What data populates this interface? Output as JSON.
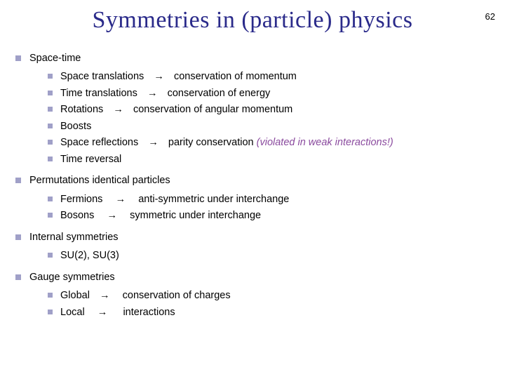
{
  "page_number": "62",
  "title": "Symmetries in (particle) physics",
  "title_color": "#2a2a8a",
  "bullet_color": "#a0a0c8",
  "note_color": "#8a4a9e",
  "arrow": "→",
  "body_fontsize": 14.5,
  "title_fontsize": 34,
  "sections": [
    {
      "heading": "Space-time",
      "items": [
        {
          "pre": "Space translations",
          "post": "conservation of momentum",
          "has_arrow": true
        },
        {
          "pre": "Time translations",
          "post": "conservation of energy",
          "has_arrow": true
        },
        {
          "pre": "Rotations",
          "post": "conservation of angular momentum",
          "has_arrow": true
        },
        {
          "pre": "Boosts",
          "post": "",
          "has_arrow": false
        },
        {
          "pre": "Space reflections",
          "post": "parity conservation",
          "has_arrow": true,
          "note": "(violated in weak interactions!)"
        },
        {
          "pre": "Time reversal",
          "post": "",
          "has_arrow": false
        }
      ]
    },
    {
      "heading": "Permutations identical particles",
      "items": [
        {
          "pre": "Fermions",
          "post": "anti-symmetric under interchange",
          "has_arrow": true
        },
        {
          "pre": "Bosons",
          "post": "symmetric under interchange",
          "has_arrow": true
        }
      ]
    },
    {
      "heading": "Internal symmetries",
      "items": [
        {
          "pre": "SU(2), SU(3)",
          "post": "",
          "has_arrow": false
        }
      ]
    },
    {
      "heading": "Gauge symmetries",
      "items": [
        {
          "pre": "Global",
          "post": "conservation of charges",
          "has_arrow": true
        },
        {
          "pre": "Local",
          "post": "interactions",
          "has_arrow": true
        }
      ]
    }
  ]
}
